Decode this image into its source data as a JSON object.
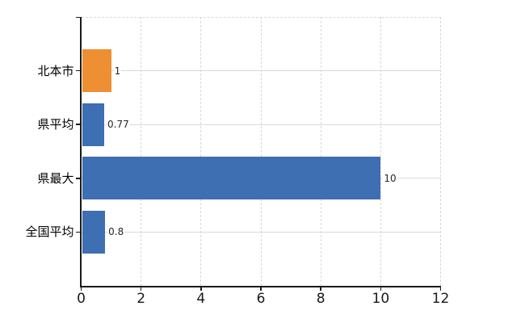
{
  "chart_data": {
    "type": "bar",
    "orientation": "horizontal",
    "title": "",
    "xlabel": "",
    "ylabel": "",
    "categories": [
      "北本市",
      "県平均",
      "県最大",
      "全国平均"
    ],
    "values": [
      1,
      0.77,
      10,
      0.8
    ],
    "value_labels": [
      "1",
      "0.77",
      "10",
      "0.8"
    ],
    "bar_colors": [
      "#ee8f33",
      "#3d6fb2",
      "#3d6fb2",
      "#3d6fb2"
    ],
    "xlim": [
      0,
      12
    ],
    "x_ticks": [
      0,
      2,
      4,
      6,
      8,
      10,
      12
    ],
    "x_tick_labels": [
      "0",
      "2",
      "4",
      "6",
      "8",
      "10",
      "12"
    ],
    "legend": "none",
    "grid": {
      "vertical_style": "dashed",
      "horizontal_style": "solid",
      "top_border_style": "dashed",
      "color": "#d9d9d9"
    }
  },
  "colors": {
    "background": "#ffffff",
    "axis": "#1a1a1a",
    "grid": "#d9d9d9",
    "bar_orange": "#ee8f33",
    "bar_blue": "#3d6fb2",
    "value_label_text": "#262626",
    "tick_label_text": "#1a1a1a",
    "category_label_text": "#000000"
  }
}
